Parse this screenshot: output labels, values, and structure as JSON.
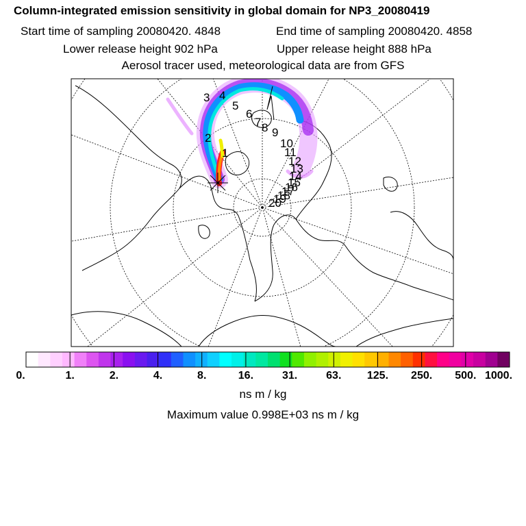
{
  "header": {
    "title": "Column-integrated emission sensitivity in global domain for NP3_20080419",
    "start_label": "Start time of sampling 20080420.  4848",
    "end_label": "End time of sampling 20080420.  4858",
    "lower_label": "Lower release height  902 hPa",
    "upper_label": "Upper release height  888 hPa",
    "tracer_label": "Aerosol tracer used, meteorological data are from GFS"
  },
  "map": {
    "day_markers": [
      "1",
      "2",
      "3",
      "4",
      "5",
      "6",
      "7",
      "8",
      "9",
      "10",
      "11",
      "12",
      "13",
      "14",
      "15",
      "16",
      "17",
      "18",
      "19",
      "20"
    ]
  },
  "colorbar": {
    "colors": [
      "#ffffff",
      "#ffe8ff",
      "#ffd0ff",
      "#ffb8ff",
      "#f080f8",
      "#dd55f0",
      "#c035ec",
      "#a820ee",
      "#8a10f0",
      "#6a1af0",
      "#4a20ee",
      "#3030f8",
      "#2060ff",
      "#1090ff",
      "#10b0ff",
      "#10d0ff",
      "#00ffff",
      "#00f0e8",
      "#00e8c0",
      "#00e8a0",
      "#00e070",
      "#10e020",
      "#50e800",
      "#90f000",
      "#b0f000",
      "#d0f000",
      "#f0f000",
      "#ffe000",
      "#ffc800",
      "#ffb000",
      "#ff8800",
      "#ff6000",
      "#ff3000",
      "#ff1040",
      "#ff0088",
      "#f000a0",
      "#e000a8",
      "#c800a0",
      "#a00090",
      "#700060"
    ],
    "tick_labels": [
      "0.",
      "1.",
      "2.",
      "4.",
      "8.",
      "16.",
      "31.",
      "63.",
      "125.",
      "250.",
      "500.",
      "1000."
    ],
    "units": "ns m / kg",
    "max_value_label": "Maximum value  0.998E+03 ns m / kg"
  }
}
